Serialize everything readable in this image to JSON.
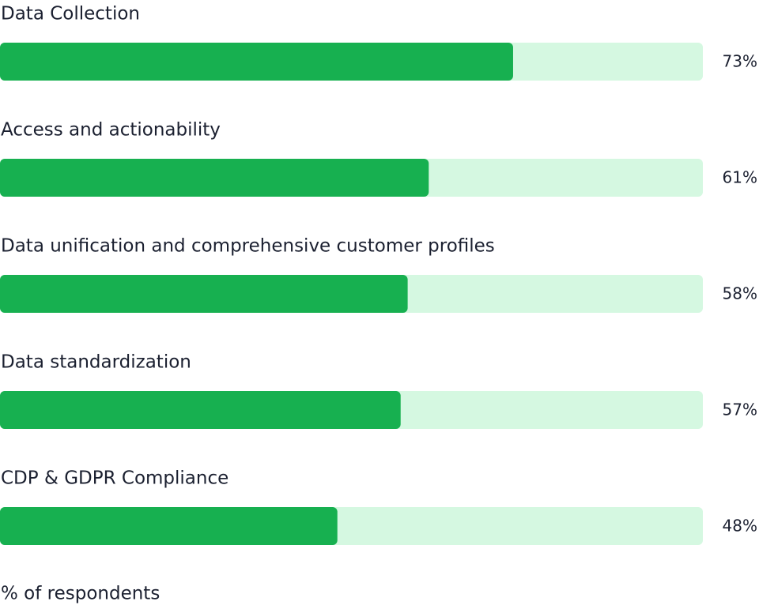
{
  "chart_data": {
    "type": "bar",
    "orientation": "horizontal",
    "categories": [
      "Data Collection",
      "Access and actionability",
      "Data unification and comprehensive customer profiles",
      "Data standardization",
      "CDP & GDPR Compliance"
    ],
    "values": [
      73,
      61,
      58,
      57,
      48
    ],
    "value_labels": [
      "73%",
      "61%",
      "58%",
      "57%",
      "48%"
    ],
    "color": "#17b050",
    "track_color": "#d5f8e1",
    "xlim": [
      0,
      100
    ],
    "x_label": "% of respondents"
  }
}
